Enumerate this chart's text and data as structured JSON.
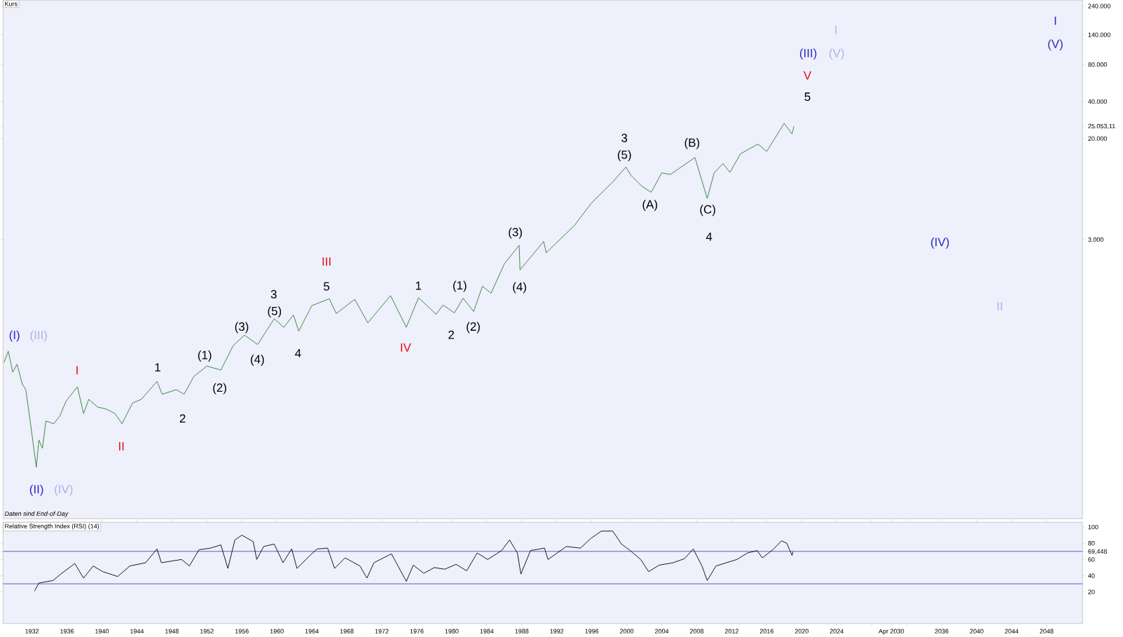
{
  "chart_data": [
    {
      "type": "line",
      "title": "Kurs",
      "log": true,
      "xlim": [
        1928.7,
        2052.1
      ],
      "ylim": [
        16,
        268000
      ],
      "tick_labels": "y",
      "yticks": [
        {
          "value": 240000,
          "label": "240.000"
        },
        {
          "value": 140000,
          "label": "140.000"
        },
        {
          "value": 80000,
          "label": "80.000"
        },
        {
          "value": 40000,
          "label": "40.000"
        },
        {
          "value": 25053.11,
          "label": "25.053,11"
        },
        {
          "value": 20000,
          "label": "20.000"
        },
        {
          "value": 3000,
          "label": "3.000"
        }
      ],
      "series": [
        {
          "color": "#2e7d32",
          "x": [
            1928.8,
            1929.3,
            1929.8,
            1930.3,
            1930.9,
            1931.3,
            1931.8,
            1932.5,
            1932.8,
            1933.2,
            1933.6,
            1934.5,
            1935.2,
            1935.9,
            1937.2,
            1937.9,
            1938.5,
            1939.5,
            1940.5,
            1941.5,
            1942.3,
            1943.5,
            1944.5,
            1946.3,
            1946.9,
            1948.5,
            1949.4,
            1950.5,
            1952,
            1953.6,
            1955,
            1956.3,
            1957.8,
            1959.7,
            1960.8,
            1961.9,
            1962.5,
            1964,
            1966,
            1966.8,
            1968.9,
            1970.4,
            1973,
            1974.8,
            1976.2,
            1978.2,
            1979,
            1980.3,
            1981.3,
            1982.5,
            1983.5,
            1984.5,
            1986,
            1987.7,
            1987.8,
            1990.5,
            1990.8,
            1994,
            1996,
            1998.5,
            1999.9,
            2000.5,
            2001.7,
            2002.8,
            2004,
            2005,
            2007.8,
            2009.2,
            2010,
            2011,
            2011.8,
            2013,
            2015,
            2016,
            2018.0,
            2018.9,
            2019.1
          ],
          "values": [
            300,
            370,
            250,
            290,
            200,
            180,
            100,
            42,
            70,
            60,
            100,
            95,
            110,
            145,
            190,
            115,
            150,
            130,
            125,
            115,
            95,
            140,
            150,
            210,
            165,
            180,
            165,
            230,
            280,
            260,
            410,
            500,
            420,
            680,
            580,
            730,
            540,
            870,
            990,
            750,
            980,
            630,
            1050,
            580,
            1010,
            740,
            880,
            760,
            1000,
            780,
            1250,
            1100,
            1900,
            2700,
            1700,
            2900,
            2350,
            3900,
            6000,
            9000,
            11700,
            10000,
            8200,
            7300,
            10500,
            10200,
            14000,
            6500,
            10500,
            12500,
            10600,
            15000,
            18000,
            15700,
            26600,
            21800,
            25050
          ]
        }
      ],
      "annotations": [
        "Daten sind End-of-Day",
        "(I)",
        "(III)",
        "I",
        "(II)",
        "(IV)",
        "II",
        "1",
        "2",
        "(1)",
        "(2)",
        "(3)",
        "(4)",
        "3",
        "(5)",
        "4",
        "III",
        "5",
        "IV",
        "1",
        "(1)",
        "2",
        "(2)",
        "(3)",
        "(4)",
        "3",
        "(5)",
        "(A)",
        "(B)",
        "(C)",
        "4",
        "(III)",
        "(V)",
        "I",
        "V",
        "5",
        "(IV)",
        "II",
        "I",
        "(V)"
      ]
    },
    {
      "type": "line",
      "title": "Relative Strength Index (RSI) (14)",
      "xlim": [
        1928.7,
        2052.1
      ],
      "ylim": [
        -19,
        106
      ],
      "xticks": [
        1932,
        1936,
        1940,
        1944,
        1948,
        1952,
        1956,
        1960,
        1964,
        1968,
        1972,
        1976,
        1980,
        1984,
        1988,
        1992,
        1996,
        2000,
        2004,
        2008,
        2012,
        2016,
        2020,
        2024,
        {
          "value": 2028,
          "label": null
        },
        {
          "value": 2030.25,
          "label": "Apr 2030"
        },
        {
          "value": 2032,
          "label": null
        },
        2036,
        2040,
        2044,
        2048
      ],
      "yticks": [
        100,
        80,
        {
          "value": 69.448,
          "label": "69,448"
        },
        60,
        40,
        20
      ],
      "ref_lines": [
        {
          "axis": "y",
          "value": 70,
          "color": "#3b3b9e"
        },
        {
          "axis": "y",
          "value": 30,
          "color": "#3b3b9e"
        }
      ],
      "series": [
        {
          "color": "#000000",
          "x": [
            1932.3,
            1932.8,
            1934.4,
            1935.3,
            1936.9,
            1937.9,
            1939,
            1940.1,
            1941.8,
            1943.2,
            1945,
            1946.3,
            1946.8,
            1949.1,
            1950,
            1951.1,
            1952.4,
            1953.6,
            1954.4,
            1955.2,
            1956,
            1957.3,
            1957.7,
            1958.5,
            1959.7,
            1960.7,
            1961.7,
            1962.3,
            1963.8,
            1964.6,
            1965.8,
            1966.6,
            1967.8,
            1969.5,
            1970.3,
            1971.1,
            1973.1,
            1974.8,
            1975.6,
            1976.8,
            1978,
            1979.2,
            1980.5,
            1981.7,
            1982.9,
            1984.1,
            1985.7,
            1986.6,
            1987.5,
            1987.9,
            1989,
            1990.6,
            1991,
            1993.1,
            1994.7,
            1995.9,
            1997.1,
            1998.4,
            1999.4,
            2000.4,
            2001.6,
            2002.5,
            2003.7,
            2005.3,
            2006.6,
            2007.6,
            2008.6,
            2009.2,
            2010.2,
            2011.4,
            2012.6,
            2013.8,
            2014.9,
            2015.5,
            2016.7,
            2017.7,
            2018.3,
            2018.9,
            2019.0
          ],
          "values": [
            21,
            31,
            34,
            42,
            55,
            37,
            52,
            45,
            39,
            52,
            56,
            73,
            56,
            60,
            52,
            72,
            74,
            78,
            49,
            84,
            90,
            82,
            60,
            76,
            79,
            56,
            73,
            49,
            65,
            73,
            74,
            49,
            62,
            52,
            37,
            56,
            67,
            33,
            53,
            43,
            50,
            48,
            54,
            46,
            68,
            60,
            71,
            84,
            68,
            42,
            71,
            74,
            60,
            76,
            74,
            86,
            95,
            95,
            79,
            71,
            60,
            45,
            53,
            56,
            61,
            73,
            52,
            34,
            52,
            56,
            60,
            68,
            71,
            62,
            72,
            83,
            80,
            65,
            69.448
          ]
        }
      ]
    }
  ]
}
